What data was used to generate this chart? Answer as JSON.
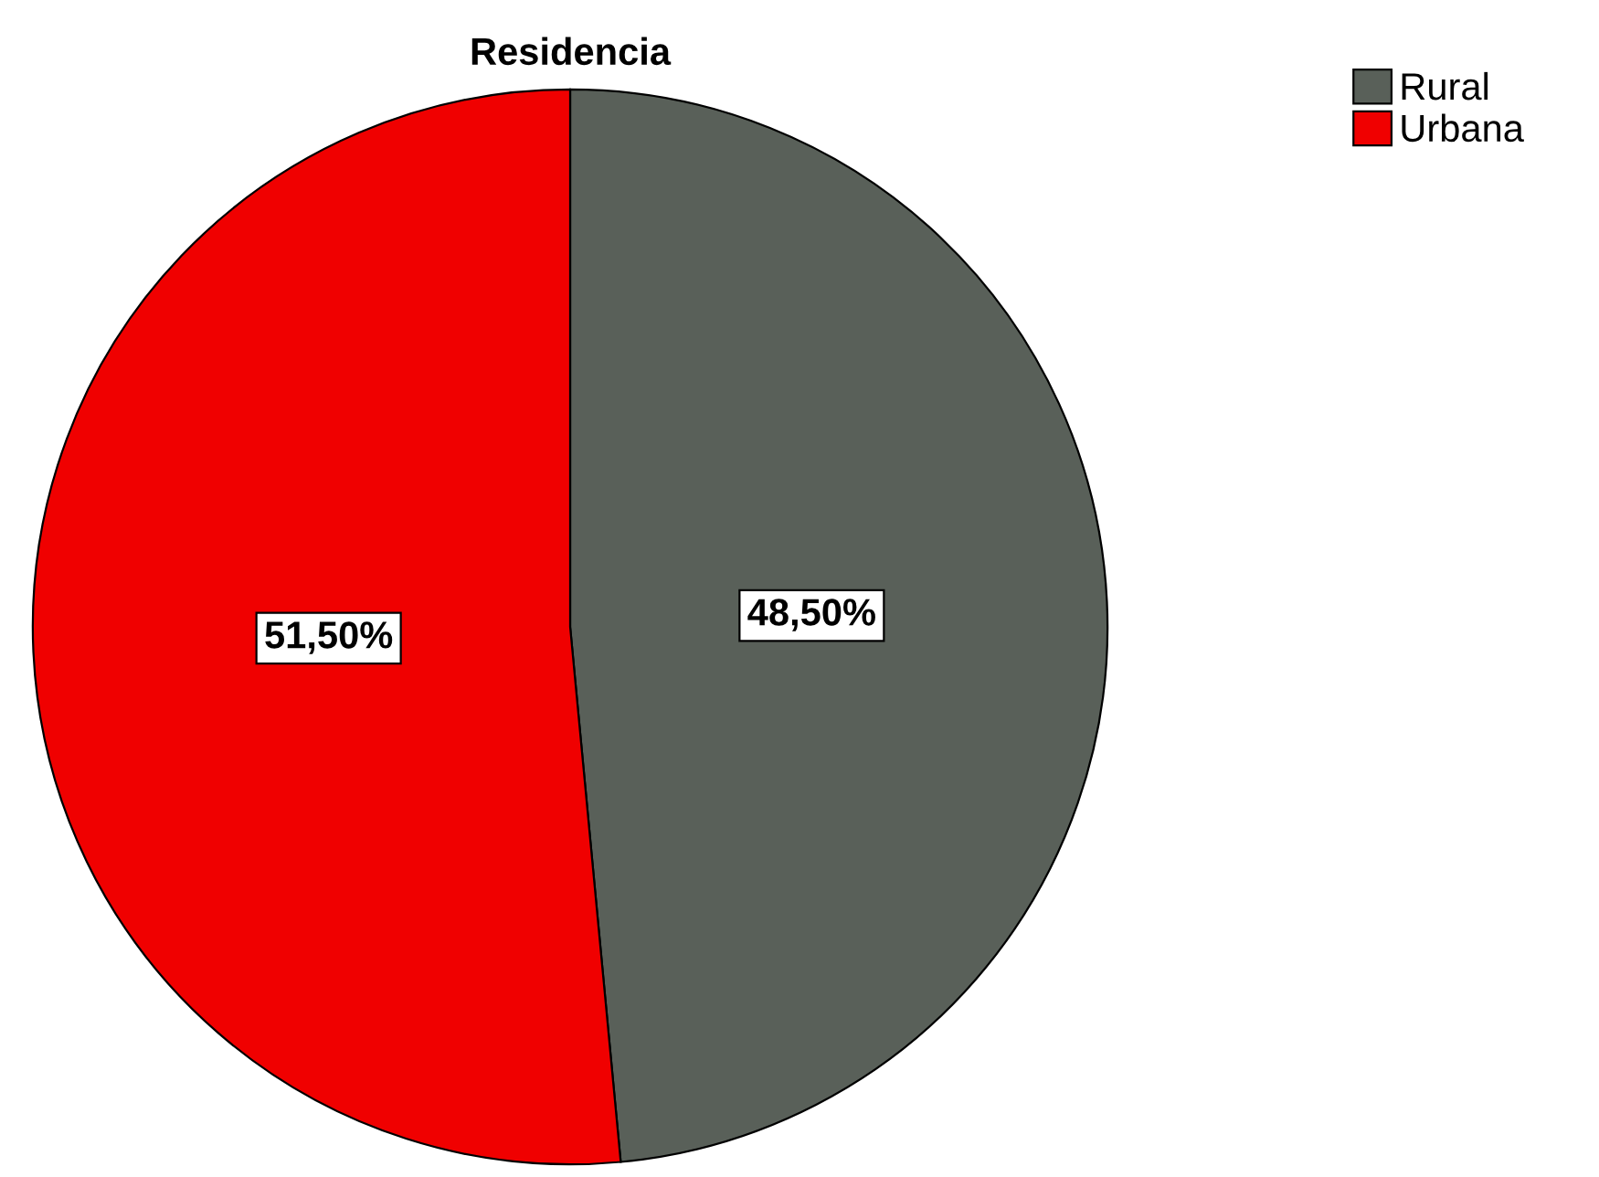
{
  "chart_data": {
    "type": "pie",
    "title": "Residencia",
    "categories": [
      "Rural",
      "Urbana"
    ],
    "values": [
      48.5,
      51.5
    ],
    "colors": [
      "#596059",
      "#f00000"
    ],
    "value_labels": [
      "48,50%",
      "51,50%"
    ],
    "legend": "top right"
  }
}
